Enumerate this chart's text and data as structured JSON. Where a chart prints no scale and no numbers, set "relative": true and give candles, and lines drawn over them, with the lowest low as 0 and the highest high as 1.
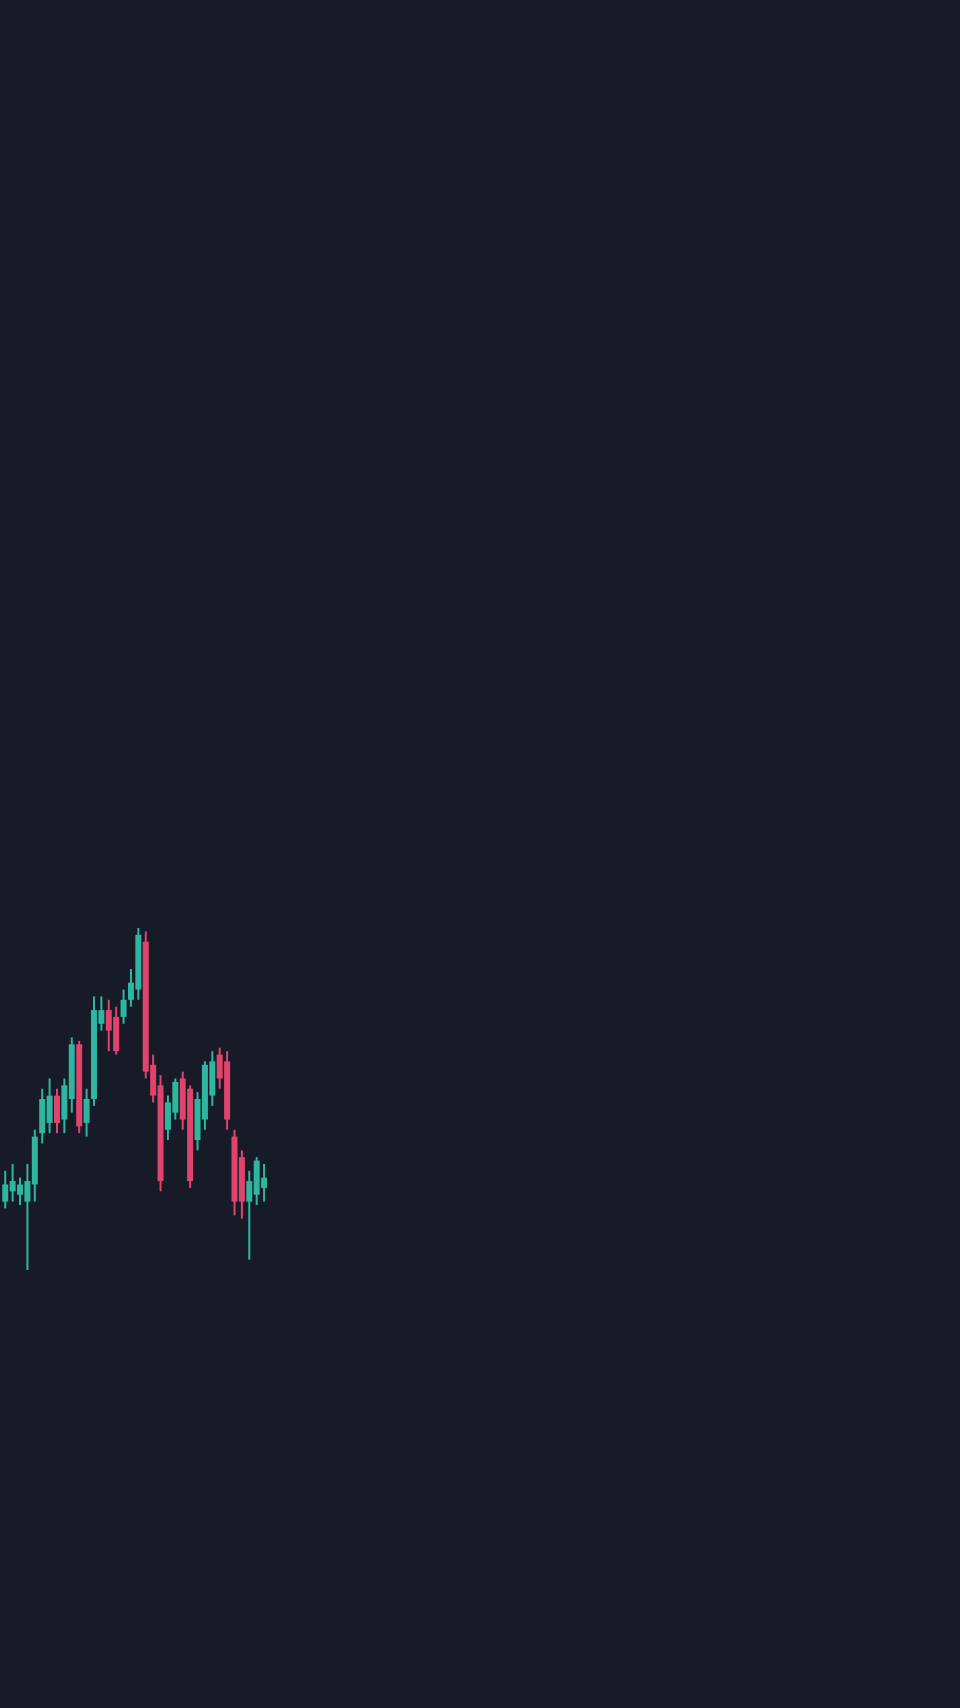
{
  "chart_data": {
    "type": "candlestick",
    "relative": true,
    "categories": [
      null,
      null,
      null,
      null,
      null,
      null,
      null,
      null,
      null,
      null,
      null,
      null,
      null,
      null,
      null,
      null,
      null,
      null,
      null,
      null,
      null,
      null,
      null,
      null,
      null,
      null,
      null,
      null,
      null,
      null,
      null,
      null,
      null,
      null,
      null,
      null
    ],
    "ohlc": [
      [
        0.2,
        0.29,
        0.18,
        0.25
      ],
      [
        0.23,
        0.31,
        0.2,
        0.26
      ],
      [
        0.22,
        0.27,
        0.19,
        0.25
      ],
      [
        0.2,
        0.31,
        0,
        0.26
      ],
      [
        0.25,
        0.41,
        0.2,
        0.39
      ],
      [
        0.4,
        0.53,
        0.37,
        0.5
      ],
      [
        0.43,
        0.56,
        0.4,
        0.51
      ],
      [
        0.51,
        0.53,
        0.4,
        0.43
      ],
      [
        0.44,
        0.56,
        0.4,
        0.54
      ],
      [
        0.5,
        0.68,
        0.46,
        0.66
      ],
      [
        0.66,
        0.67,
        0.4,
        0.42
      ],
      [
        0.43,
        0.53,
        0.39,
        0.5
      ],
      [
        0.5,
        0.8,
        0.48,
        0.76
      ],
      [
        0.72,
        0.8,
        0.7,
        0.76
      ],
      [
        0.76,
        0.79,
        0.64,
        0.7
      ],
      [
        0.74,
        0.77,
        0.63,
        0.64
      ],
      [
        0.74,
        0.82,
        0.72,
        0.79
      ],
      [
        0.79,
        0.88,
        0.77,
        0.84
      ],
      [
        0.82,
        1,
        0.79,
        0.98
      ],
      [
        0.96,
        0.99,
        0.56,
        0.58
      ],
      [
        0.6,
        0.63,
        0.49,
        0.51
      ],
      [
        0.54,
        0.57,
        0.23,
        0.26
      ],
      [
        0.41,
        0.51,
        0.38,
        0.49
      ],
      [
        0.46,
        0.56,
        0.44,
        0.55
      ],
      [
        0.56,
        0.58,
        0.41,
        0.44
      ],
      [
        0.53,
        0.54,
        0.24,
        0.26
      ],
      [
        0.38,
        0.52,
        0.35,
        0.5
      ],
      [
        0.44,
        0.61,
        0.41,
        0.6
      ],
      [
        0.51,
        0.64,
        0.48,
        0.61
      ],
      [
        0.63,
        0.65,
        0.53,
        0.56
      ],
      [
        0.61,
        0.64,
        0.41,
        0.44
      ],
      [
        0.39,
        0.41,
        0.16,
        0.2
      ],
      [
        0.33,
        0.35,
        0.15,
        0.2
      ],
      [
        0.2,
        0.29,
        0.03,
        0.26
      ],
      [
        0.22,
        0.33,
        0.19,
        0.32
      ],
      [
        0.24,
        0.31,
        0.2,
        0.27
      ]
    ],
    "colors": [
      "#2fb5a0",
      "#2fb5a0",
      "#2fb5a0",
      "#2fb5a0",
      "#2fb5a0",
      "#2fb5a0",
      "#2fb5a0",
      "#e0436e",
      "#2fb5a0",
      "#2fb5a0",
      "#e0436e",
      "#2fb5a0",
      "#2fb5a0",
      "#2fb5a0",
      "#e0436e",
      "#e0436e",
      "#2fb5a0",
      "#2fb5a0",
      "#2fb5a0",
      "#e0436e",
      "#e0436e",
      "#e0436e",
      "#2fb5a0",
      "#2fb5a0",
      "#e0436e",
      "#e0436e",
      "#2fb5a0",
      "#2fb5a0",
      "#2fb5a0",
      "#e0436e",
      "#e0436e",
      "#e0436e",
      "#e0436e",
      "#2fb5a0",
      "#2fb5a0",
      "#2fb5a0"
    ]
  }
}
